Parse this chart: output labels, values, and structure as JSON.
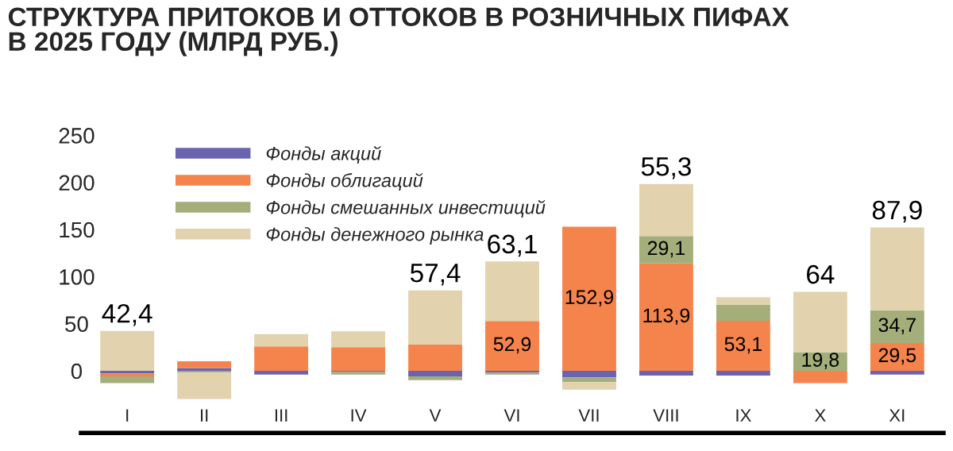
{
  "chart_data": {
    "type": "bar",
    "stacked": true,
    "title": "СТРУКТУРА ПРИТОКОВ И ОТТОКОВ В РОЗНИЧНЫХ ПИФАХ\nВ 2025 ГОДУ (МЛРД РУБ.)",
    "categories": [
      "I",
      "II",
      "III",
      "IV",
      "V",
      "VI",
      "VII",
      "VIII",
      "IX",
      "X",
      "XI"
    ],
    "series": [
      {
        "name": "Фонды акций",
        "color": "#6a63b0",
        "values": [
          -3,
          3,
          -4,
          -1,
          -6,
          -2,
          -7,
          -5,
          -5,
          0,
          -4
        ]
      },
      {
        "name": "Фонды облигаций",
        "color": "#f5844c",
        "values": [
          -3,
          7,
          26,
          25,
          28,
          52.9,
          152.9,
          113.9,
          53.1,
          -13,
          29.5
        ],
        "value_labels": [
          null,
          null,
          null,
          null,
          null,
          "52,9",
          "152,9",
          "113,9",
          "53,1",
          null,
          "29,5"
        ]
      },
      {
        "name": "Фонды смешанных инвестиций",
        "color": "#a3ae7b",
        "values": [
          -7,
          -2,
          0,
          -3,
          -4,
          -2,
          -5,
          29.1,
          17,
          19.8,
          34.7
        ],
        "value_labels": [
          null,
          null,
          null,
          null,
          null,
          null,
          null,
          "29,1",
          null,
          "19,8",
          "34,7"
        ]
      },
      {
        "name": "Фонды денежного рынка",
        "color": "#e2d2ae",
        "values": [
          42.4,
          -28,
          13,
          17,
          57.4,
          63.1,
          -8,
          55.3,
          8,
          64,
          87.9
        ],
        "value_labels": [
          "42,4",
          null,
          null,
          null,
          "57,4",
          "63,1",
          null,
          "55,3",
          null,
          "64",
          "87,9"
        ]
      }
    ],
    "ylim": [
      -66,
      250
    ],
    "yticks": [
      0,
      50,
      100,
      150,
      200,
      250
    ],
    "grid": false,
    "legend": "top left"
  }
}
